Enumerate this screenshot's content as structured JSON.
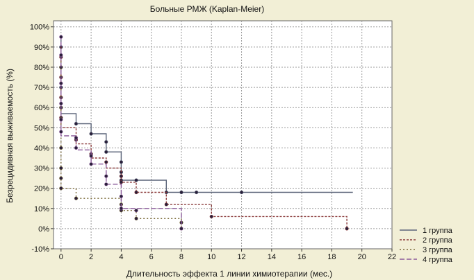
{
  "chart_data": {
    "type": "line",
    "title": "Больные РМЖ (Kaplan-Meier)",
    "xlabel": "Длительность эффекта 1 линии химиотерапии (мес.)",
    "ylabel": "Безрецидивная выживаемость (%)",
    "xlim": [
      -0.5,
      22
    ],
    "ylim": [
      -10,
      103
    ],
    "x_ticks": [
      0,
      2,
      4,
      6,
      8,
      10,
      12,
      14,
      16,
      18,
      20,
      22
    ],
    "y_ticks": [
      -10,
      0,
      10,
      20,
      30,
      40,
      50,
      60,
      70,
      80,
      90,
      100
    ],
    "y_tick_labels": [
      "-10%",
      "0%",
      "10%",
      "20%",
      "30%",
      "40%",
      "50%",
      "60%",
      "70%",
      "80%",
      "90%",
      "100%"
    ],
    "grid": true,
    "legend_position": "bottom-right",
    "colors": {
      "background": "#f2efd6",
      "plot_bg": "#ffffff",
      "grid": "#9a9a9a"
    },
    "series": [
      {
        "name": "1 группа",
        "color": "#5a6378",
        "dash": "solid",
        "steps": [
          [
            0,
            95
          ],
          [
            0,
            57
          ],
          [
            1,
            57
          ],
          [
            1,
            52
          ],
          [
            2,
            52
          ],
          [
            2,
            47
          ],
          [
            3,
            47
          ],
          [
            3,
            38
          ],
          [
            4,
            38
          ],
          [
            4,
            24
          ],
          [
            7,
            24
          ],
          [
            7,
            18
          ],
          [
            19.4,
            18
          ]
        ],
        "markers": [
          [
            0,
            90
          ],
          [
            0,
            80
          ],
          [
            0,
            70
          ],
          [
            0,
            60
          ],
          [
            1,
            52
          ],
          [
            2,
            47
          ],
          [
            3,
            43
          ],
          [
            3,
            38
          ],
          [
            4,
            33
          ],
          [
            4,
            28
          ],
          [
            4,
            24
          ],
          [
            5,
            24
          ],
          [
            7,
            18
          ],
          [
            8,
            18
          ],
          [
            9,
            18
          ],
          [
            12,
            18
          ]
        ]
      },
      {
        "name": "2 группа",
        "color": "#8a3a3a",
        "dash": "3 2",
        "steps": [
          [
            0,
            92
          ],
          [
            0,
            50
          ],
          [
            1,
            50
          ],
          [
            1,
            42
          ],
          [
            2,
            42
          ],
          [
            2,
            35
          ],
          [
            3,
            35
          ],
          [
            3,
            30
          ],
          [
            4,
            30
          ],
          [
            4,
            23
          ],
          [
            5,
            23
          ],
          [
            5,
            18
          ],
          [
            7,
            18
          ],
          [
            7,
            12
          ],
          [
            10,
            12
          ],
          [
            10,
            6
          ],
          [
            19,
            6
          ],
          [
            19,
            0
          ]
        ],
        "markers": [
          [
            0,
            85
          ],
          [
            0,
            75
          ],
          [
            0,
            65
          ],
          [
            0,
            55
          ],
          [
            1,
            44
          ],
          [
            2,
            37
          ],
          [
            3,
            33
          ],
          [
            4,
            26
          ],
          [
            4,
            23
          ],
          [
            5,
            18
          ],
          [
            7,
            12
          ],
          [
            10,
            6
          ],
          [
            19,
            0
          ]
        ]
      },
      {
        "name": "3 группа",
        "color": "#7a6a38",
        "dash": "2 3",
        "steps": [
          [
            0,
            88
          ],
          [
            0,
            20
          ],
          [
            1,
            20
          ],
          [
            1,
            15
          ],
          [
            4,
            15
          ],
          [
            4,
            9
          ],
          [
            5,
            9
          ],
          [
            5,
            5
          ],
          [
            8,
            5
          ],
          [
            8,
            0
          ]
        ],
        "markers": [
          [
            0,
            80
          ],
          [
            0,
            60
          ],
          [
            0,
            40
          ],
          [
            0,
            30
          ],
          [
            0,
            25
          ],
          [
            0,
            20
          ],
          [
            1,
            15
          ],
          [
            4,
            12
          ],
          [
            4,
            9
          ],
          [
            5,
            5
          ],
          [
            8,
            3
          ],
          [
            8,
            0
          ]
        ]
      },
      {
        "name": "4 группа",
        "color": "#8a5a9a",
        "dash": "7 3",
        "steps": [
          [
            0,
            96
          ],
          [
            0,
            46
          ],
          [
            1,
            46
          ],
          [
            1,
            39
          ],
          [
            2,
            39
          ],
          [
            2,
            32
          ],
          [
            3,
            32
          ],
          [
            3,
            22
          ],
          [
            4,
            22
          ],
          [
            4,
            10
          ],
          [
            8,
            10
          ],
          [
            8,
            0
          ]
        ],
        "markers": [
          [
            0,
            95
          ],
          [
            0,
            86
          ],
          [
            0,
            72
          ],
          [
            0,
            62
          ],
          [
            0,
            54
          ],
          [
            0,
            48
          ],
          [
            1,
            45
          ],
          [
            1,
            40
          ],
          [
            2,
            36
          ],
          [
            2,
            32
          ],
          [
            3,
            26
          ],
          [
            3,
            22
          ],
          [
            4,
            16
          ],
          [
            4,
            10
          ],
          [
            5,
            9
          ],
          [
            8,
            0
          ]
        ]
      }
    ]
  }
}
